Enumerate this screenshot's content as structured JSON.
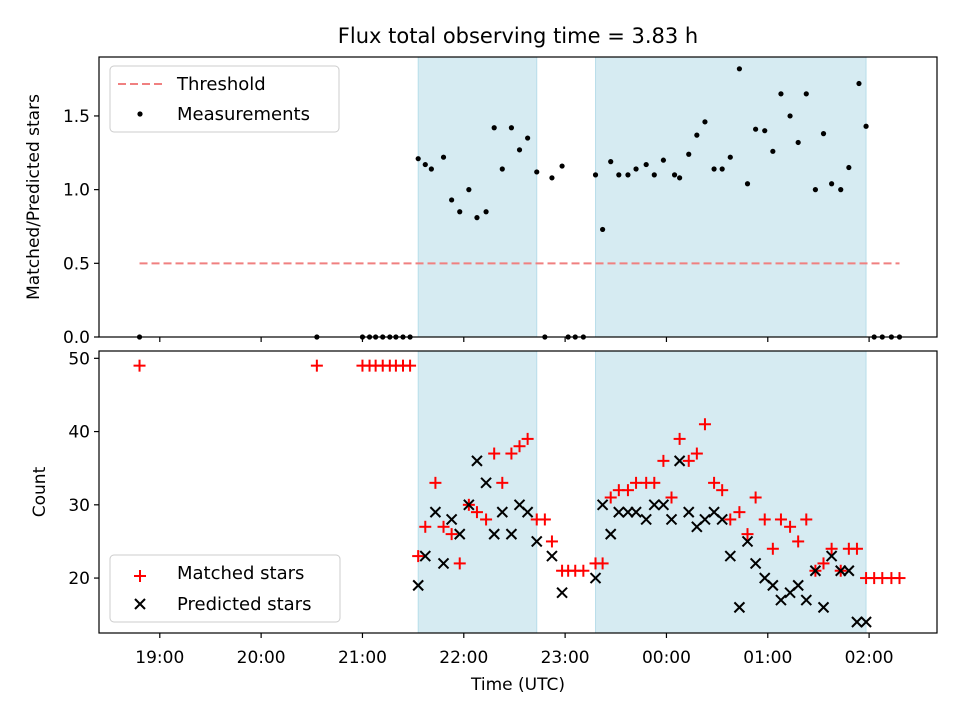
{
  "chart_data": [
    {
      "type": "scatter",
      "title": "Flux total observing time = 3.83 h",
      "xlabel": "",
      "ylabel": "Matched/Predicted stars",
      "xlim_hours": [
        18.4,
        26.67
      ],
      "ylim": [
        0,
        1.9
      ],
      "yticks": [
        0.0,
        0.5,
        1.0,
        1.5
      ],
      "ytick_labels": [
        "0.0",
        "0.5",
        "1.0",
        "1.5"
      ],
      "shaded_intervals_hours": [
        [
          21.55,
          22.72
        ],
        [
          23.3,
          25.97
        ]
      ],
      "threshold": {
        "name": "Threshold",
        "value": 0.5,
        "x_range_hours": [
          18.8,
          26.3
        ],
        "color": "#f08080"
      },
      "legend": {
        "placement": "top-left",
        "entries": [
          "Threshold",
          "Measurements"
        ]
      },
      "series": [
        {
          "name": "Measurements",
          "color": "#000000",
          "x": [
            18.8,
            20.55,
            21.0,
            21.07,
            21.13,
            21.2,
            21.27,
            21.33,
            21.4,
            21.47,
            21.55,
            21.62,
            21.68,
            21.8,
            21.88,
            21.96,
            22.05,
            22.13,
            22.22,
            22.3,
            22.38,
            22.47,
            22.55,
            22.63,
            22.72,
            22.8,
            22.87,
            22.97,
            23.03,
            23.1,
            23.18,
            23.3,
            23.37,
            23.45,
            23.53,
            23.62,
            23.7,
            23.8,
            23.88,
            23.97,
            24.08,
            24.13,
            24.22,
            24.3,
            24.38,
            24.47,
            24.55,
            24.63,
            24.72,
            24.8,
            24.88,
            24.97,
            25.05,
            25.13,
            25.22,
            25.3,
            25.38,
            25.47,
            25.55,
            25.63,
            25.72,
            25.8,
            25.9,
            25.97,
            26.05,
            26.13,
            26.22,
            26.3
          ],
          "y": [
            0.0,
            0.0,
            0.0,
            0.0,
            0.0,
            0.0,
            0.0,
            0.0,
            0.0,
            0.0,
            1.21,
            1.17,
            1.14,
            1.22,
            0.93,
            0.85,
            1.0,
            0.81,
            0.85,
            1.42,
            1.14,
            1.42,
            1.27,
            1.35,
            1.12,
            0.0,
            1.08,
            1.16,
            0.0,
            0.0,
            0.0,
            1.1,
            0.73,
            1.19,
            1.1,
            1.1,
            1.14,
            1.17,
            1.1,
            1.2,
            1.1,
            1.08,
            1.24,
            1.37,
            1.46,
            1.14,
            1.14,
            1.22,
            1.82,
            1.04,
            1.41,
            1.4,
            1.26,
            1.65,
            1.5,
            1.32,
            1.65,
            1.0,
            1.38,
            1.04,
            1.0,
            1.15,
            1.72,
            1.43,
            0.0,
            0.0,
            0.0,
            0.0
          ]
        }
      ]
    },
    {
      "type": "scatter",
      "title": "",
      "xlabel": "Time (UTC)",
      "ylabel": "Count",
      "xlim_hours": [
        18.4,
        26.67
      ],
      "ylim": [
        12.5,
        51
      ],
      "yticks": [
        20,
        30,
        40,
        50
      ],
      "ytick_labels": [
        "20",
        "30",
        "40",
        "50"
      ],
      "xticks_hours": [
        19,
        20,
        21,
        22,
        23,
        24,
        25,
        26
      ],
      "xtick_labels": [
        "19:00",
        "20:00",
        "21:00",
        "22:00",
        "23:00",
        "00:00",
        "01:00",
        "02:00"
      ],
      "shaded_intervals_hours": [
        [
          21.55,
          22.72
        ],
        [
          23.3,
          25.97
        ]
      ],
      "legend": {
        "placement": "bottom-left",
        "entries": [
          "Matched stars",
          "Predicted stars"
        ]
      },
      "series": [
        {
          "name": "Matched stars",
          "marker": "plus",
          "color": "#ff0000",
          "x": [
            18.8,
            20.55,
            21.0,
            21.07,
            21.13,
            21.2,
            21.27,
            21.33,
            21.4,
            21.47,
            21.55,
            21.62,
            21.72,
            21.8,
            21.88,
            21.96,
            22.05,
            22.13,
            22.22,
            22.3,
            22.38,
            22.47,
            22.55,
            22.63,
            22.72,
            22.8,
            22.87,
            22.97,
            23.03,
            23.1,
            23.18,
            23.3,
            23.37,
            23.45,
            23.53,
            23.62,
            23.7,
            23.8,
            23.88,
            23.97,
            24.05,
            24.13,
            24.22,
            24.3,
            24.38,
            24.47,
            24.55,
            24.63,
            24.72,
            24.8,
            24.88,
            24.97,
            25.05,
            25.13,
            25.22,
            25.3,
            25.38,
            25.47,
            25.55,
            25.63,
            25.72,
            25.8,
            25.88,
            25.97,
            26.05,
            26.13,
            26.22,
            26.3
          ],
          "y": [
            49,
            49,
            49,
            49,
            49,
            49,
            49,
            49,
            49,
            49,
            23,
            27,
            33,
            27,
            26,
            22,
            30,
            29,
            28,
            37,
            33,
            37,
            38,
            39,
            28,
            28,
            25,
            21,
            21,
            21,
            21,
            22,
            22,
            31,
            32,
            32,
            33,
            33,
            33,
            36,
            31,
            39,
            36,
            37,
            41,
            33,
            32,
            28,
            29,
            26,
            31,
            28,
            24,
            28,
            27,
            25,
            28,
            21,
            22,
            24,
            21,
            24,
            24,
            20,
            20,
            20,
            20,
            20
          ]
        },
        {
          "name": "Predicted stars",
          "marker": "x",
          "color": "#000000",
          "x": [
            21.55,
            21.62,
            21.72,
            21.8,
            21.88,
            21.96,
            22.05,
            22.13,
            22.22,
            22.3,
            22.38,
            22.47,
            22.55,
            22.63,
            22.72,
            22.87,
            22.97,
            23.3,
            23.37,
            23.45,
            23.53,
            23.62,
            23.7,
            23.8,
            23.88,
            23.97,
            24.05,
            24.13,
            24.22,
            24.3,
            24.38,
            24.47,
            24.55,
            24.63,
            24.72,
            24.8,
            24.88,
            24.97,
            25.05,
            25.13,
            25.22,
            25.3,
            25.38,
            25.47,
            25.55,
            25.63,
            25.72,
            25.8,
            25.88,
            25.97
          ],
          "y": [
            19,
            23,
            29,
            22,
            28,
            26,
            30,
            36,
            33,
            26,
            29,
            26,
            30,
            29,
            25,
            23,
            18,
            20,
            30,
            26,
            29,
            29,
            29,
            28,
            30,
            30,
            28,
            36,
            29,
            27,
            28,
            29,
            28,
            23,
            16,
            25,
            22,
            20,
            19,
            17,
            18,
            19,
            17,
            21,
            16,
            23,
            21,
            21,
            14,
            14
          ]
        }
      ]
    }
  ]
}
